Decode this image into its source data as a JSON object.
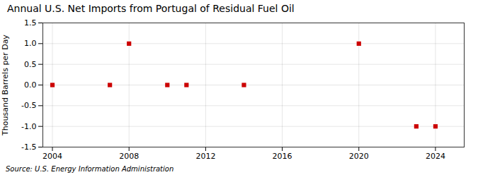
{
  "chart_data": {
    "type": "scatter",
    "title": "Annual U.S. Net Imports from Portugal of Residual Fuel Oil",
    "ylabel": "Thousand Barrels per Day",
    "source": "Source: U.S. Energy Information Administration",
    "x": [
      2004,
      2007,
      2008,
      2010,
      2011,
      2014,
      2020,
      2023,
      2024
    ],
    "values": [
      0.0,
      0.0,
      1.0,
      0.0,
      0.0,
      0.0,
      1.0,
      -1.0,
      -1.0
    ],
    "color": "#cc0000",
    "marker": "square",
    "xlim": [
      2003.5,
      2025.5
    ],
    "xticks": [
      2004,
      2008,
      2012,
      2016,
      2020,
      2024
    ],
    "ylim": [
      -1.5,
      1.5
    ],
    "yticks": [
      -1.5,
      {
        "value": -1,
        "label": "-1.0"
      },
      -0.5,
      {
        "value": 0,
        "label": "0.0"
      },
      0.5,
      {
        "value": 1,
        "label": "1.0"
      },
      1.5
    ],
    "grid": true
  }
}
